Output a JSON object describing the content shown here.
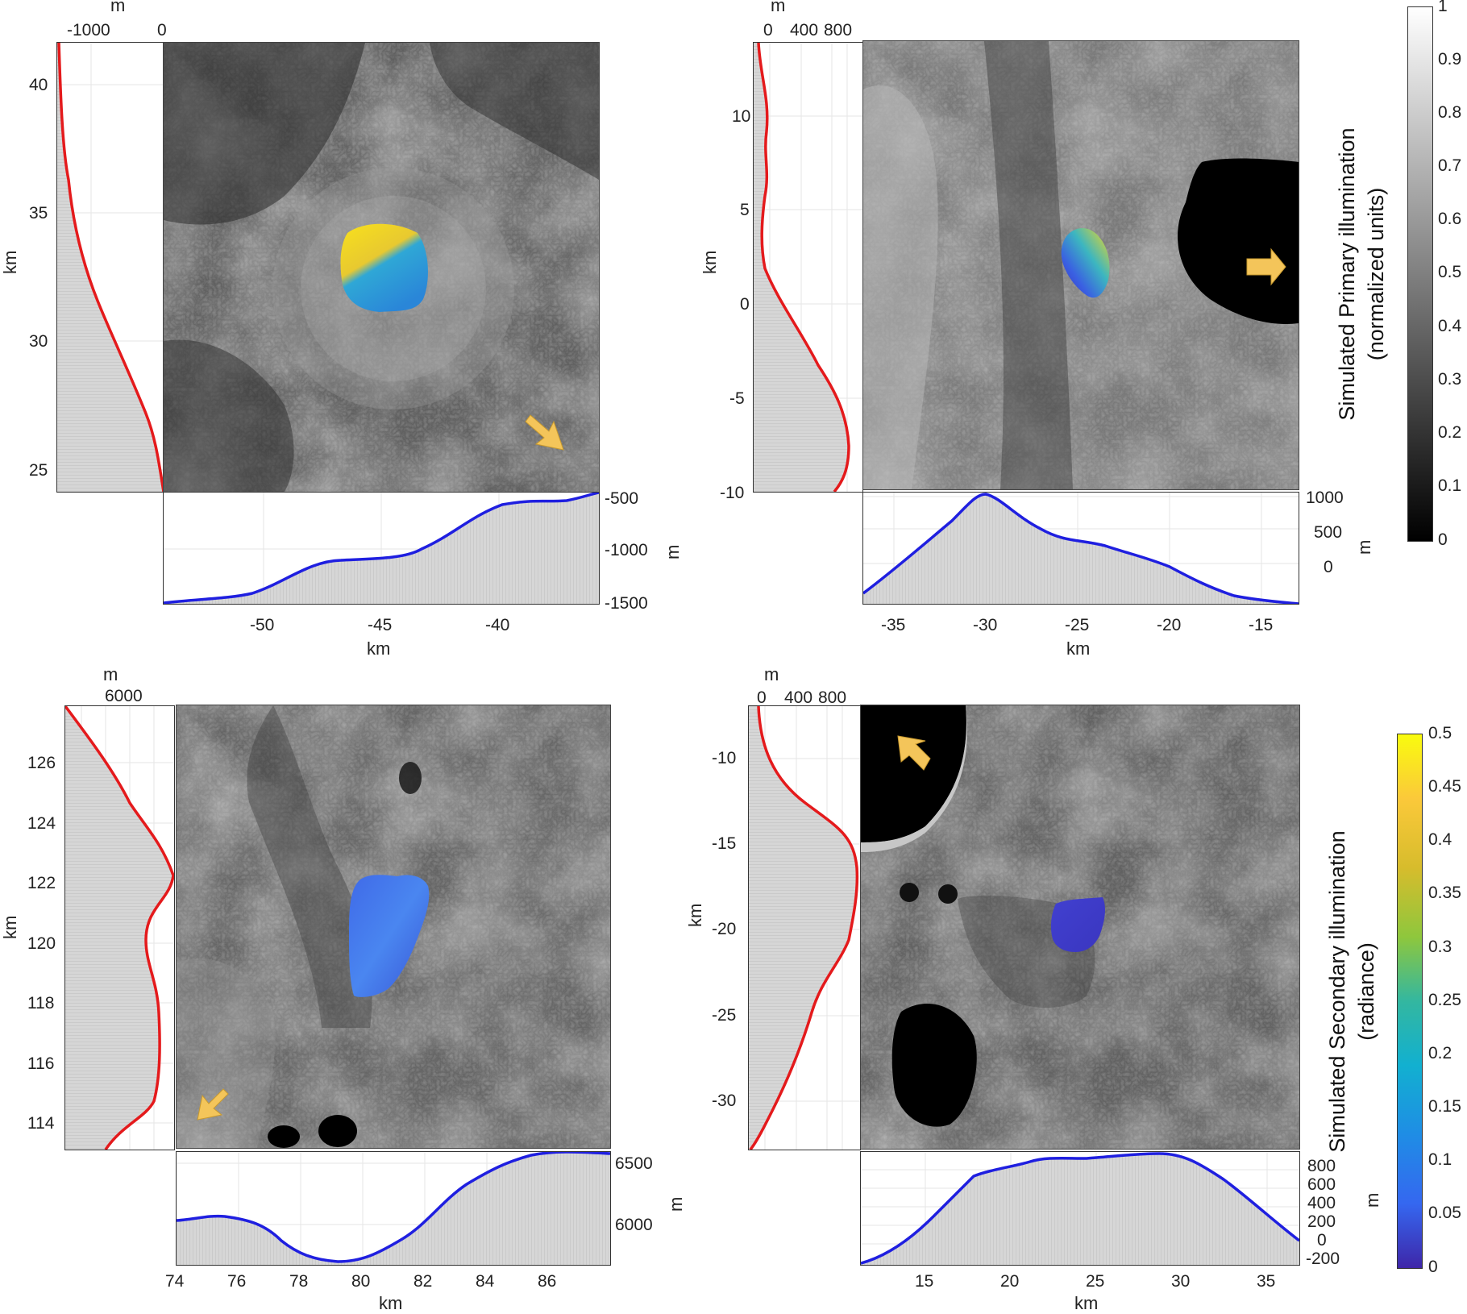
{
  "panels": [
    {
      "id": "tl",
      "left_profile": {
        "unit": "m",
        "ticks": [
          "-1000",
          "0"
        ],
        "yaxis_unit": "km",
        "yticks": [
          "40",
          "35",
          "30",
          "25"
        ]
      },
      "bottom_profile": {
        "unit": "m",
        "ticks": [
          "-500",
          "-1000",
          "-1500"
        ],
        "xaxis_unit": "km",
        "xticks": [
          "-50",
          "-45",
          "-40"
        ]
      },
      "patch_palette": "yellow-blue"
    },
    {
      "id": "tr",
      "left_profile": {
        "unit": "m",
        "ticks": [
          "0",
          "400",
          "800"
        ],
        "yaxis_unit": "km",
        "yticks": [
          "10",
          "5",
          "0",
          "-5",
          "-10"
        ]
      },
      "bottom_profile": {
        "unit": "m",
        "ticks": [
          "1000",
          "500",
          "0"
        ],
        "xaxis_unit": "km",
        "xticks": [
          "-35",
          "-30",
          "-25",
          "-20",
          "-15"
        ]
      },
      "patch_palette": "yellow-purple"
    },
    {
      "id": "bl",
      "left_profile": {
        "unit": "m",
        "ticks": [
          "6000"
        ],
        "yaxis_unit": "km",
        "yticks": [
          "126",
          "124",
          "122",
          "120",
          "118",
          "116",
          "114"
        ]
      },
      "bottom_profile": {
        "unit": "m",
        "ticks": [
          "6500",
          "6000"
        ],
        "xaxis_unit": "km",
        "xticks": [
          "74",
          "76",
          "78",
          "80",
          "82",
          "84",
          "86"
        ]
      },
      "patch_palette": "blue"
    },
    {
      "id": "br",
      "left_profile": {
        "unit": "m",
        "ticks": [
          "0",
          "400",
          "800"
        ],
        "yaxis_unit": "km",
        "yticks": [
          "-10",
          "-15",
          "-20",
          "-25",
          "-30"
        ]
      },
      "bottom_profile": {
        "unit": "m",
        "ticks": [
          "800",
          "600",
          "400",
          "200",
          "0",
          "-200"
        ],
        "xaxis_unit": "km",
        "xticks": [
          "15",
          "20",
          "25",
          "30",
          "35"
        ]
      },
      "patch_palette": "purple"
    }
  ],
  "colorbar_primary": {
    "label_line1": "Simulated Primary illumination",
    "label_line2": "(normalized units)",
    "ticks": [
      "1",
      "0.9",
      "0.8",
      "0.7",
      "0.6",
      "0.5",
      "0.4",
      "0.3",
      "0.2",
      "0.1",
      "0"
    ]
  },
  "colorbar_secondary": {
    "label_line1": "Simulated Secondary illumination",
    "label_line2": "(radiance)",
    "ticks": [
      "0.5",
      "0.45",
      "0.4",
      "0.35",
      "0.3",
      "0.25",
      "0.2",
      "0.15",
      "0.1",
      "0.05",
      "0"
    ]
  },
  "colors": {
    "left_profile_line": "#e41a1c",
    "bottom_profile_line": "#1f1fe0",
    "arrow": "#f4c55a",
    "fill": "#cfcfcf"
  }
}
